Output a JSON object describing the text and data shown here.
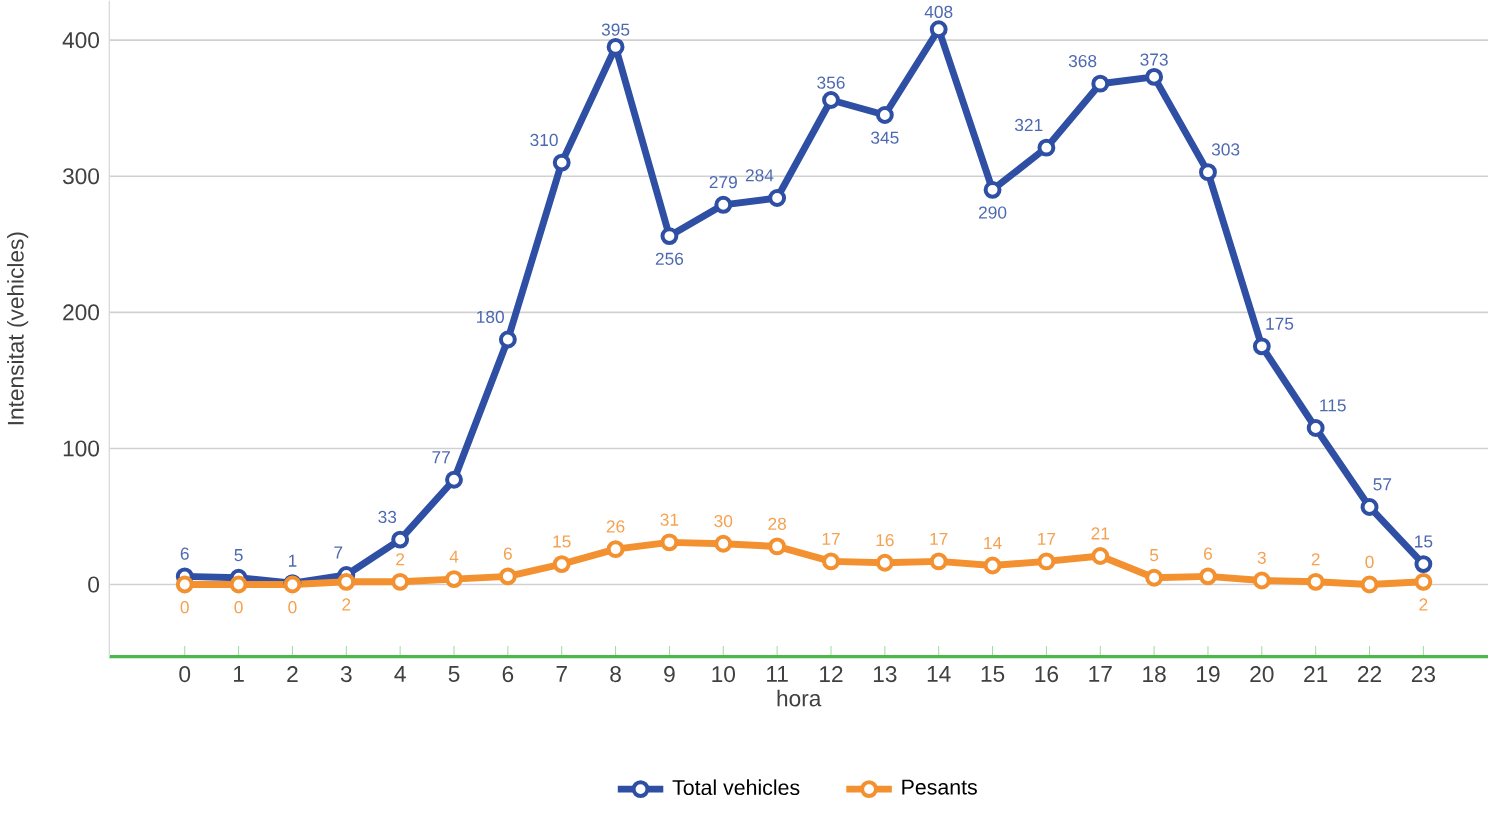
{
  "chart_data": {
    "type": "line",
    "xlabel": "hora",
    "ylabel": "Intensitat (vehicles)",
    "categories": [
      "0",
      "1",
      "2",
      "3",
      "4",
      "5",
      "6",
      "7",
      "8",
      "9",
      "10",
      "11",
      "12",
      "13",
      "14",
      "15",
      "16",
      "17",
      "18",
      "19",
      "20",
      "21",
      "22",
      "23"
    ],
    "series": [
      {
        "name": "Total vehicles",
        "color": "#2e4fa3",
        "values": [
          6,
          5,
          1,
          7,
          33,
          77,
          180,
          310,
          395,
          256,
          279,
          284,
          356,
          345,
          408,
          290,
          321,
          368,
          373,
          303,
          175,
          115,
          57,
          15
        ]
      },
      {
        "name": "Pesants",
        "color": "#f39130",
        "values": [
          0,
          0,
          0,
          2,
          2,
          4,
          6,
          15,
          26,
          31,
          30,
          28,
          17,
          16,
          17,
          14,
          17,
          21,
          5,
          6,
          3,
          2,
          0,
          2
        ]
      }
    ],
    "ylim": [
      -53,
      429
    ],
    "yticks": [
      0,
      100,
      200,
      300,
      400
    ],
    "grid": "y",
    "legend": "bottom",
    "marker": "circle",
    "line_style": "solid",
    "data_labels": true
  }
}
